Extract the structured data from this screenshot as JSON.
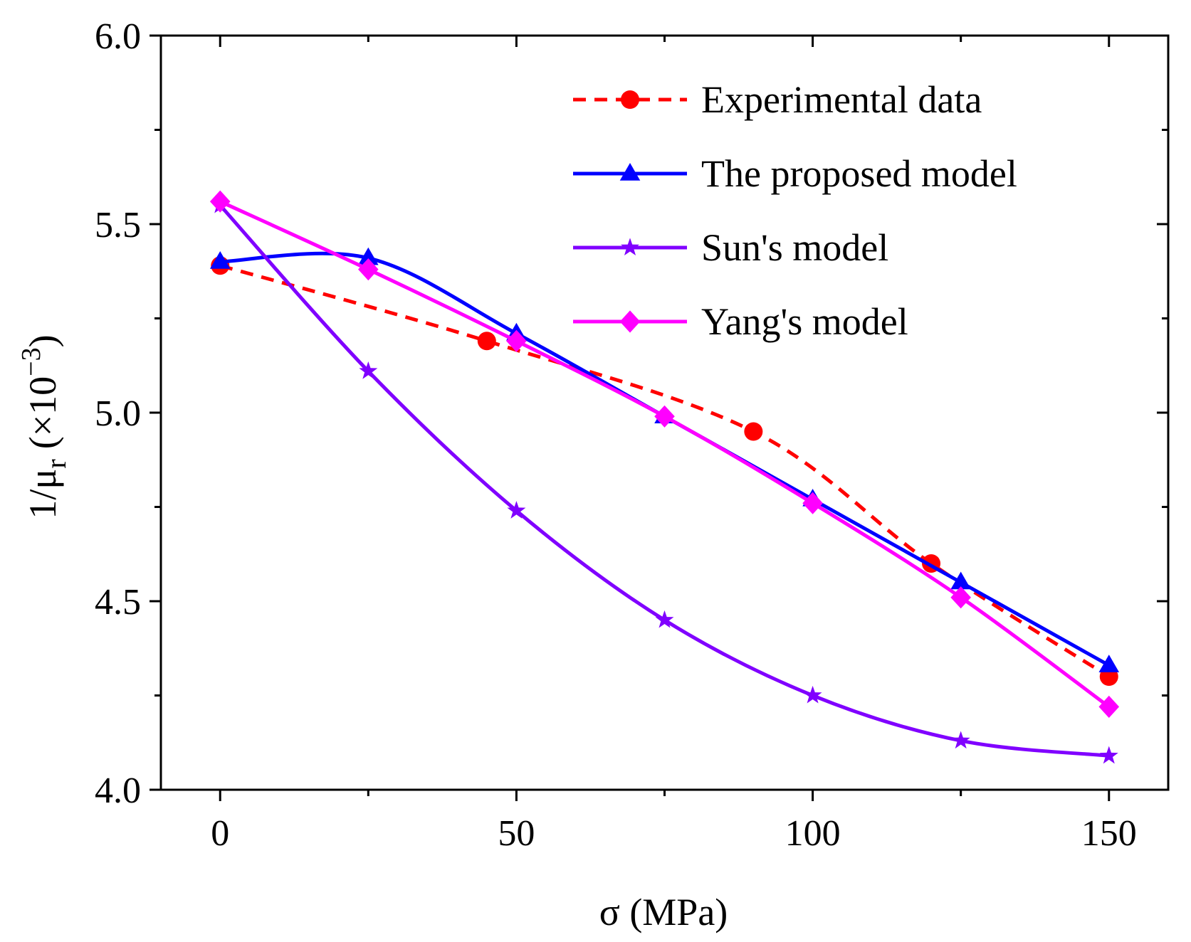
{
  "chart_data": {
    "type": "line",
    "title": "",
    "xlabel": "σ (MPa)",
    "ylabel": {
      "prefix": "1/μ",
      "subscript": "r",
      "scale_open": "(×10",
      "scale_exp": "−3",
      "scale_close": ")"
    },
    "xlim": [
      -10,
      160
    ],
    "ylim": [
      4.0,
      6.0
    ],
    "x_ticks": [
      0,
      50,
      100,
      150
    ],
    "x_tick_labels": [
      "0",
      "50",
      "100",
      "150"
    ],
    "y_ticks": [
      4.0,
      4.5,
      5.0,
      5.5,
      6.0
    ],
    "y_tick_labels": [
      "4.0",
      "4.5",
      "5.0",
      "5.5",
      "6.0"
    ],
    "legend_position": "top-right",
    "series": [
      {
        "name": "Experimental data",
        "color": "#ff0000",
        "dash": "dashed",
        "marker": "circle",
        "x": [
          0,
          45,
          90,
          120,
          150
        ],
        "y": [
          5.39,
          5.19,
          4.95,
          4.6,
          4.3
        ]
      },
      {
        "name": "The proposed model",
        "color": "#0000ff",
        "dash": "solid",
        "marker": "triangle",
        "x": [
          0,
          25,
          50,
          75,
          100,
          125,
          150
        ],
        "y": [
          5.4,
          5.41,
          5.21,
          4.99,
          4.77,
          4.55,
          4.33
        ]
      },
      {
        "name": "Sun's model",
        "color": "#8000ff",
        "dash": "solid",
        "marker": "star",
        "x": [
          0,
          25,
          50,
          75,
          100,
          125,
          150
        ],
        "y": [
          5.55,
          5.11,
          4.74,
          4.45,
          4.25,
          4.13,
          4.09
        ]
      },
      {
        "name": "Yang's model",
        "color": "#ff00ff",
        "dash": "solid",
        "marker": "diamond",
        "x": [
          0,
          25,
          50,
          75,
          100,
          125,
          150
        ],
        "y": [
          5.56,
          5.38,
          5.19,
          4.99,
          4.76,
          4.51,
          4.22
        ]
      }
    ]
  }
}
